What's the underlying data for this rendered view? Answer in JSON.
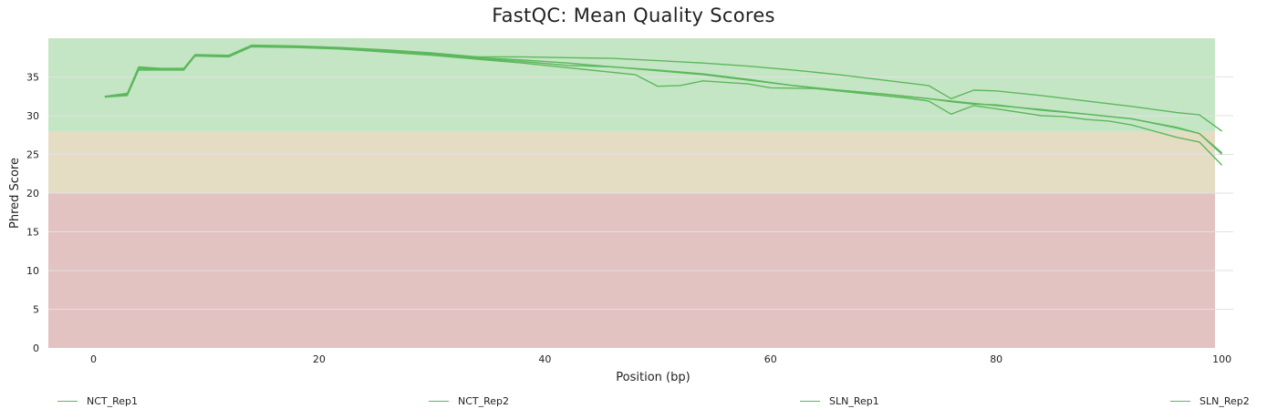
{
  "chart_data": {
    "type": "line",
    "title": "FastQC: Mean Quality Scores",
    "xlabel": "Position (bp)",
    "ylabel": "Phred Score",
    "xlim": [
      -4,
      101
    ],
    "ylim": [
      0,
      40
    ],
    "xticks": [
      0,
      20,
      40,
      60,
      80,
      100
    ],
    "yticks": [
      0,
      5,
      10,
      15,
      20,
      25,
      30,
      35
    ],
    "grid": "horizontal",
    "legend_position": "bottom",
    "line_color": "#5cb85c",
    "background_bands": [
      {
        "from": 0,
        "to": 20,
        "color": "#e3c2c2"
      },
      {
        "from": 20,
        "to": 28,
        "color": "#e5dcc4"
      },
      {
        "from": 28,
        "to": 40,
        "color": "#c5e6c5"
      }
    ],
    "series": [
      {
        "name": "NCT_Rep1",
        "x": [
          1,
          3,
          4,
          6,
          8,
          9,
          12,
          14,
          18,
          22,
          26,
          30,
          34,
          38,
          42,
          46,
          50,
          54,
          58,
          62,
          66,
          70,
          74,
          76,
          78,
          80,
          84,
          88,
          92,
          96,
          98,
          100
        ],
        "y": [
          32.5,
          32.9,
          36.3,
          36.1,
          36.1,
          37.9,
          37.8,
          39.1,
          39.0,
          38.8,
          38.5,
          38.1,
          37.6,
          37.6,
          37.5,
          37.4,
          37.1,
          36.8,
          36.4,
          35.9,
          35.3,
          34.6,
          33.9,
          32.2,
          33.3,
          33.2,
          32.6,
          31.9,
          31.2,
          30.4,
          30.1,
          28.0
        ]
      },
      {
        "name": "NCT_Rep2",
        "x": [
          1,
          3,
          4,
          6,
          8,
          9,
          12,
          14,
          18,
          22,
          26,
          30,
          34,
          38,
          42,
          46,
          50,
          54,
          58,
          62,
          66,
          70,
          74,
          76,
          78,
          80,
          84,
          88,
          92,
          96,
          98,
          100
        ],
        "y": [
          32.4,
          32.7,
          36.0,
          36.0,
          36.0,
          37.8,
          37.7,
          39.0,
          38.9,
          38.7,
          38.3,
          37.9,
          37.4,
          37.0,
          36.5,
          36.3,
          35.9,
          35.4,
          34.7,
          33.9,
          33.3,
          32.8,
          32.2,
          31.8,
          31.5,
          31.4,
          30.7,
          30.2,
          29.6,
          28.5,
          27.7,
          25.2
        ]
      },
      {
        "name": "SLN_Rep1",
        "x": [
          1,
          3,
          4,
          6,
          8,
          9,
          12,
          14,
          18,
          22,
          26,
          30,
          34,
          38,
          42,
          46,
          48,
          50,
          52,
          54,
          58,
          60,
          64,
          68,
          72,
          74,
          76,
          78,
          80,
          84,
          86,
          88,
          90,
          92,
          96,
          98,
          100
        ],
        "y": [
          32.4,
          32.6,
          35.9,
          35.9,
          35.9,
          37.7,
          37.6,
          38.9,
          38.8,
          38.6,
          38.2,
          37.8,
          37.3,
          36.8,
          36.2,
          35.6,
          35.3,
          33.8,
          33.9,
          34.5,
          34.1,
          33.6,
          33.5,
          32.9,
          32.3,
          31.9,
          30.2,
          31.3,
          30.9,
          30.0,
          29.9,
          29.5,
          29.3,
          28.8,
          27.2,
          26.6,
          23.6
        ]
      },
      {
        "name": "SLN_Rep2",
        "x": [
          1,
          3,
          4,
          6,
          8,
          9,
          12,
          14,
          18,
          22,
          26,
          30,
          34,
          38,
          42,
          46,
          50,
          54,
          58,
          62,
          66,
          70,
          74,
          78,
          80,
          84,
          88,
          92,
          96,
          98,
          100
        ],
        "y": [
          32.5,
          32.8,
          36.2,
          36.0,
          36.0,
          37.8,
          37.7,
          39.0,
          38.9,
          38.7,
          38.4,
          38.0,
          37.5,
          37.2,
          36.8,
          36.3,
          35.8,
          35.3,
          34.6,
          33.9,
          33.3,
          32.8,
          32.2,
          31.6,
          31.3,
          30.8,
          30.2,
          29.6,
          28.4,
          27.7,
          25.0
        ]
      }
    ]
  }
}
